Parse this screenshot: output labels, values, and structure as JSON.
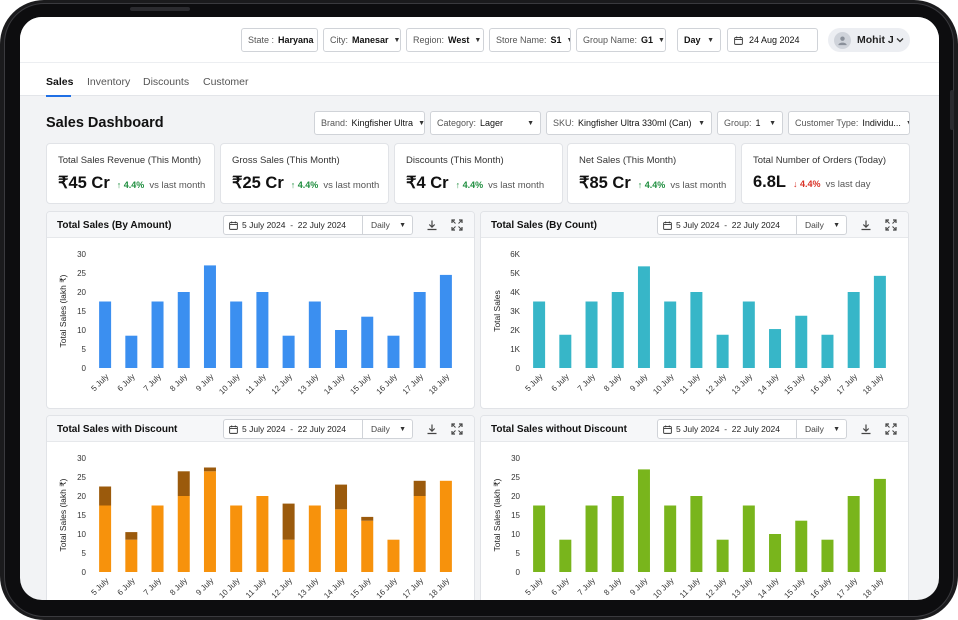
{
  "filters": {
    "state": {
      "label": "State :",
      "value": "Haryana"
    },
    "city": {
      "label": "City:",
      "value": "Manesar"
    },
    "region": {
      "label": "Region:",
      "value": "West"
    },
    "store": {
      "label": "Store Name:",
      "value": "S1"
    },
    "group_name": {
      "label": "Group Name:",
      "value": "G1"
    },
    "period": {
      "value": "Day"
    },
    "date": {
      "value": "24 Aug 2024"
    }
  },
  "user": {
    "name": "Mohit J"
  },
  "tabs": [
    "Sales",
    "Inventory",
    "Discounts",
    "Customer"
  ],
  "dashboard": {
    "title": "Sales Dashboard",
    "filters": {
      "brand": {
        "label": "Brand:",
        "value": "Kingfisher Ultra"
      },
      "category": {
        "label": "Category:",
        "value": "Lager"
      },
      "sku": {
        "label": "SKU:",
        "value": "Kingfisher Ultra 330ml (Can)"
      },
      "group": {
        "label": "Group:",
        "value": "1"
      },
      "customer_type": {
        "label": "Customer Type:",
        "value": "Individu..."
      }
    }
  },
  "kpis": [
    {
      "label": "Total Sales Revenue (This Month)",
      "value": "₹45 Cr",
      "delta": "4.4%",
      "direction": "up",
      "comparison": "vs last month"
    },
    {
      "label": "Gross Sales (This Month)",
      "value": "₹25 Cr",
      "delta": "4.4%",
      "direction": "up",
      "comparison": "vs last month"
    },
    {
      "label": "Discounts (This Month)",
      "value": "₹4 Cr",
      "delta": "4.4%",
      "direction": "up",
      "comparison": "vs last month"
    },
    {
      "label": "Net Sales (This Month)",
      "value": "₹85 Cr",
      "delta": "4.4%",
      "direction": "up",
      "comparison": "vs last month"
    },
    {
      "label": "Total Number of Orders (Today)",
      "value": "6.8L",
      "delta": "4.4%",
      "direction": "down",
      "comparison": "vs last day"
    }
  ],
  "panel_controls": {
    "date_start": "5 July 2024",
    "date_sep": "-",
    "date_end": "22 July 2024",
    "granularity": "Daily"
  },
  "colors": {
    "accent": "#1f6fe5",
    "up": "#1e8e3e",
    "down": "#d93025"
  },
  "icons": [
    "calendar-icon",
    "download-icon",
    "expand-icon",
    "caret-down-icon",
    "user-icon"
  ],
  "chart_data": [
    {
      "title": "Total Sales (By Amount)",
      "type": "bar",
      "categories": [
        "5 July",
        "6 July",
        "7 July",
        "8 July",
        "9 July",
        "10 July",
        "11 July",
        "12 July",
        "13 July",
        "14 July",
        "15 July",
        "16 July",
        "17 July",
        "18 July"
      ],
      "series": [
        {
          "values": [
            17.5,
            8.5,
            17.5,
            20,
            27,
            17.5,
            20,
            8.5,
            17.5,
            10,
            13.5,
            8.5,
            20,
            24.5
          ]
        }
      ],
      "color": "#3b8ff0",
      "xlabel": "",
      "ylabel": "Total Sales (lakh ₹)",
      "yticks": [
        "0",
        "5",
        "10",
        "15",
        "20",
        "25",
        "30"
      ],
      "ylim": [
        0,
        30
      ],
      "grid": false
    },
    {
      "title": "Total Sales (By Count)",
      "type": "bar",
      "categories": [
        "5 July",
        "6 July",
        "7 July",
        "8 July",
        "9 July",
        "10 July",
        "11 July",
        "12 July",
        "13 July",
        "14 July",
        "15 July",
        "16 July",
        "17 July",
        "18 July"
      ],
      "series": [
        {
          "values": [
            3500,
            1750,
            3500,
            4000,
            5350,
            3500,
            4000,
            1750,
            3500,
            2050,
            2750,
            1750,
            4000,
            4850
          ]
        }
      ],
      "color": "#37b6c8",
      "xlabel": "",
      "ylabel": "Total Sales",
      "yticks": [
        "0",
        "1K",
        "2K",
        "3K",
        "4K",
        "5K",
        "6K"
      ],
      "ylim": [
        0,
        6000
      ],
      "grid": false
    },
    {
      "title": "Total Sales with Discount",
      "type": "bar",
      "stacked": true,
      "categories": [
        "5 July",
        "6 July",
        "7 July",
        "8 July",
        "9 July",
        "10 July",
        "11 July",
        "12 July",
        "13 July",
        "14 July",
        "15 July",
        "16 July",
        "17 July",
        "18 July"
      ],
      "series": [
        {
          "values": [
            17.5,
            8.5,
            17.5,
            20,
            26.5,
            17.5,
            20,
            8.5,
            17.5,
            16.5,
            13.5,
            8.5,
            20,
            24
          ],
          "color": "#f7920c"
        },
        {
          "values": [
            5,
            2,
            0,
            6.5,
            1,
            0,
            0,
            9.5,
            0,
            6.5,
            1,
            0,
            4,
            0
          ],
          "color": "#9b5a0c"
        }
      ],
      "xlabel": "",
      "ylabel": "Total Sales (lakh ₹)",
      "yticks": [
        "0",
        "5",
        "10",
        "15",
        "20",
        "25",
        "30"
      ],
      "ylim": [
        0,
        30
      ],
      "grid": false
    },
    {
      "title": "Total Sales without Discount",
      "type": "bar",
      "categories": [
        "5 July",
        "6 July",
        "7 July",
        "8 July",
        "9 July",
        "10 July",
        "11 July",
        "12 July",
        "13 July",
        "14 July",
        "15 July",
        "16 July",
        "17 July",
        "18 July"
      ],
      "series": [
        {
          "values": [
            17.5,
            8.5,
            17.5,
            20,
            27,
            17.5,
            20,
            8.5,
            17.5,
            10,
            13.5,
            8.5,
            20,
            24.5
          ]
        }
      ],
      "color": "#79b51c",
      "xlabel": "",
      "ylabel": "Total Sales (lakh ₹)",
      "yticks": [
        "0",
        "5",
        "10",
        "15",
        "20",
        "25",
        "30"
      ],
      "ylim": [
        0,
        30
      ],
      "grid": false
    }
  ]
}
